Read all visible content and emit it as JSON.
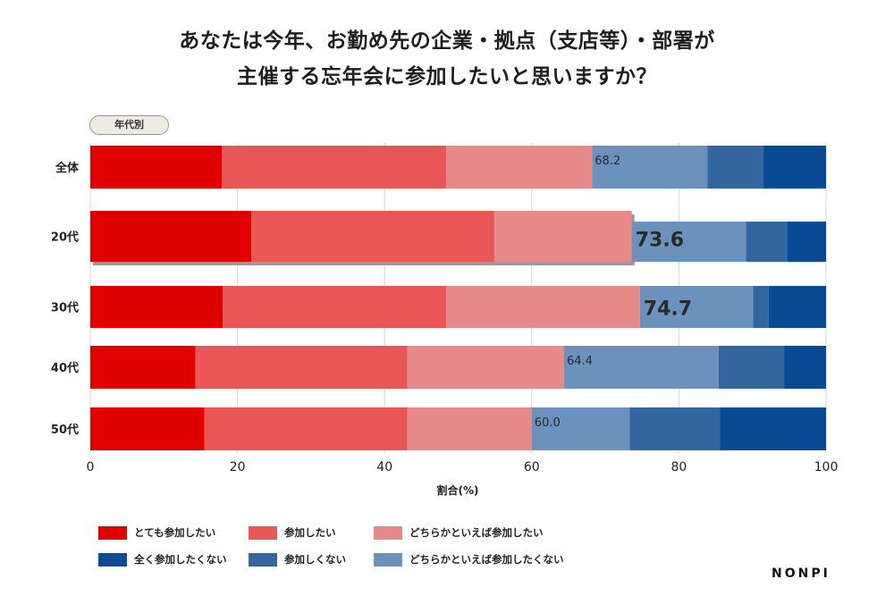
{
  "title_lines": [
    "あなたは今年、お勤め先の企業・拠点（支店等）・部署が",
    "主催する忘年会に参加したいと思いますか？"
  ],
  "badge": "年代別",
  "brand": "NONPI",
  "chart_data": {
    "type": "bar",
    "orientation": "horizontal",
    "stacked": true,
    "title": "あなたは今年、お勤め先の企業・拠点（支店等）・部署が主催する忘年会に参加したいと思いますか？",
    "xlabel": "割合(%)",
    "ylabel": "",
    "xlim": [
      0,
      100
    ],
    "xticks": [
      "0",
      "20",
      "40",
      "60",
      "80",
      "100"
    ],
    "grid": true,
    "legend_position": "bottom-left",
    "categories": [
      "全体",
      "20代",
      "30代",
      "40代",
      "50代"
    ],
    "highlighted_category": "20代",
    "series": [
      {
        "name": "とても参加したい",
        "color": "#e00000",
        "values": [
          17.9,
          21.9,
          18.0,
          14.3,
          15.5
        ]
      },
      {
        "name": "参加したい",
        "color": "#e85656",
        "values": [
          30.5,
          33.0,
          30.4,
          28.8,
          27.6
        ]
      },
      {
        "name": "どちらかといえば参加したい",
        "color": "#e88a8a",
        "values": [
          19.8,
          18.7,
          26.3,
          21.3,
          16.9
        ]
      },
      {
        "name": "どちらかといえば参加したくない",
        "color": "#6b92bc",
        "values": [
          15.7,
          15.5,
          15.4,
          21.0,
          13.3
        ]
      },
      {
        "name": "参加しくない",
        "color": "#33669f",
        "values": [
          7.6,
          5.6,
          2.1,
          8.9,
          12.3
        ]
      },
      {
        "name": "全く参加したくない",
        "color": "#094a94",
        "values": [
          8.5,
          5.3,
          7.8,
          5.7,
          14.4
        ]
      }
    ],
    "annotations": [
      {
        "category": "全体",
        "text": "68.2",
        "emphasis": false
      },
      {
        "category": "20代",
        "text": "73.6",
        "emphasis": true
      },
      {
        "category": "30代",
        "text": "74.7",
        "emphasis": true
      },
      {
        "category": "40代",
        "text": "64.4",
        "emphasis": false
      },
      {
        "category": "50代",
        "text": "60.0",
        "emphasis": false
      }
    ]
  },
  "legend": [
    {
      "label": "とても参加したい",
      "color": "#e00000"
    },
    {
      "label": "参加したい",
      "color": "#e85656"
    },
    {
      "label": "どちらかといえば参加したい",
      "color": "#e88a8a"
    },
    {
      "label": "全く参加したくない",
      "color": "#094a94"
    },
    {
      "label": "参加しくない",
      "color": "#33669f"
    },
    {
      "label": "どちらかといえば参加したくない",
      "color": "#6b92bc"
    }
  ]
}
